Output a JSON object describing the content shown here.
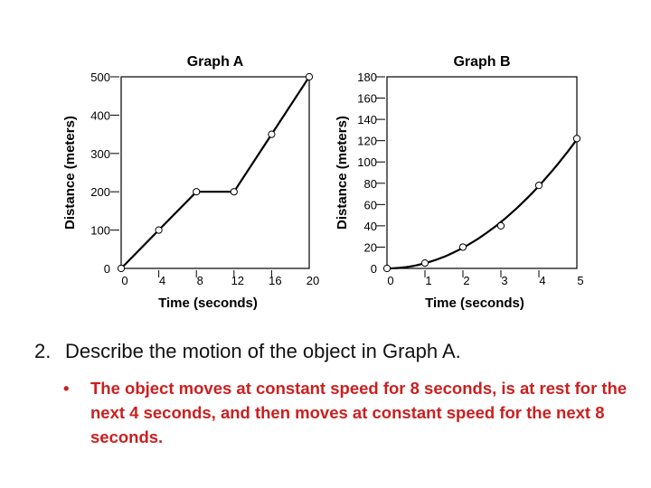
{
  "chart_data": [
    {
      "type": "line",
      "title": "Graph A",
      "xlabel": "Time (seconds)",
      "ylabel": "Distance (meters)",
      "xlim": [
        0,
        20
      ],
      "ylim": [
        0,
        500
      ],
      "xticks": [
        "0",
        "4",
        "8",
        "12",
        "16",
        "20"
      ],
      "yticks": [
        "0",
        "100",
        "200",
        "300",
        "400",
        "500"
      ],
      "x": [
        0,
        4,
        8,
        12,
        16,
        20
      ],
      "y": [
        0,
        100,
        200,
        200,
        350,
        500
      ],
      "markers": true,
      "grid": false
    },
    {
      "type": "line",
      "title": "Graph B",
      "xlabel": "Time (seconds)",
      "ylabel": "Distance (meters)",
      "xlim": [
        0,
        5
      ],
      "ylim": [
        0,
        180
      ],
      "xticks": [
        "0",
        "1",
        "2",
        "3",
        "4",
        "5"
      ],
      "yticks": [
        "0",
        "20",
        "40",
        "60",
        "80",
        "100",
        "120",
        "140",
        "160",
        "180"
      ],
      "x": [
        0,
        1,
        2,
        3,
        4,
        5
      ],
      "y": [
        0,
        5,
        20,
        40,
        78,
        122
      ],
      "markers": true,
      "smooth": true,
      "grid": false
    }
  ],
  "question": {
    "number": "2.",
    "text": "Describe the motion of the object in Graph A."
  },
  "answer": {
    "bullet": "•",
    "text": "The object moves at constant speed for 8 seconds, is at rest for the next 4 seconds, and then moves at constant speed for the next 8 seconds."
  },
  "colors": {
    "answer": "#cc1f1f",
    "line": "#000000"
  }
}
